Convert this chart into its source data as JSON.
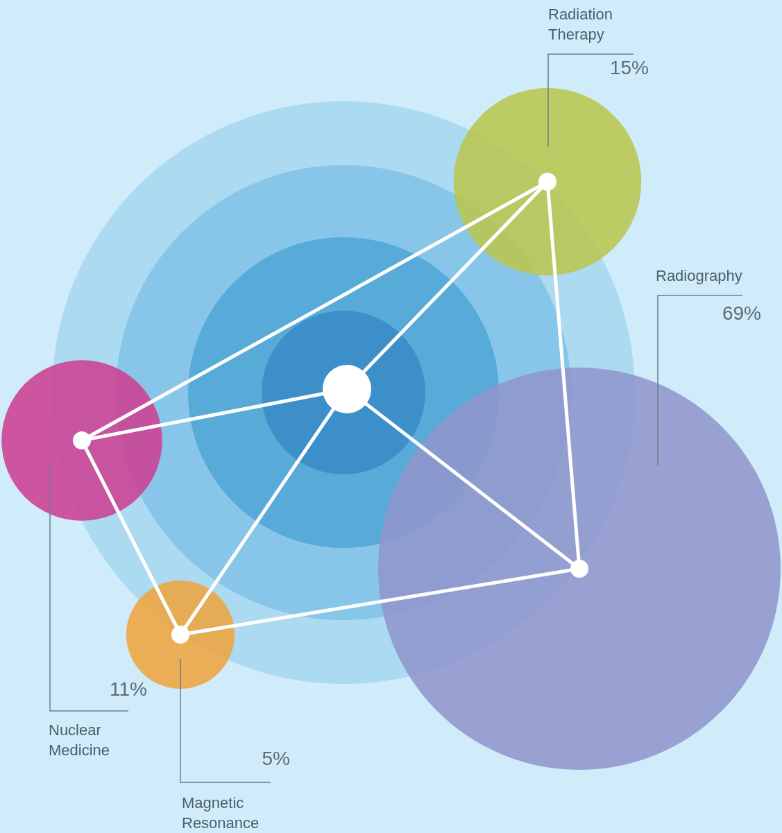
{
  "chart_data": {
    "type": "other",
    "categories": [
      "Radiation Therapy",
      "Radiography",
      "Nuclear Medicine",
      "Magnetic Resonance"
    ],
    "values": [
      15,
      69,
      11,
      5
    ],
    "value_labels": [
      "15%",
      "69%",
      "11%",
      "5%"
    ],
    "colors": [
      "#b9c64f",
      "#8f96cb",
      "#cc4093",
      "#eea43f"
    ]
  }
}
